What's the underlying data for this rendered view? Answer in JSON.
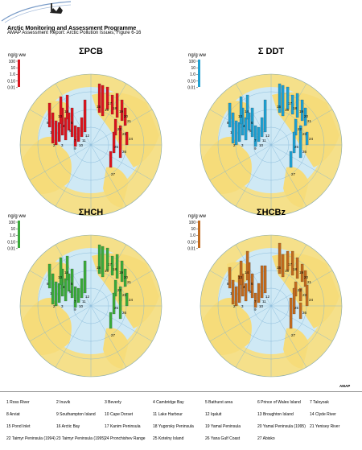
{
  "header": {
    "title": "Arctic Monitoring and Assessment Programme",
    "subtitle": "AMAP Assessment Report: Arctic Pollution Issues, Figure 6-16"
  },
  "colors": {
    "ocean": "#cfe9f5",
    "land": "#f6dc7a",
    "outer_land": "#f5e08a",
    "grid": "#7db3d6",
    "pcb": "#d8141e",
    "ddt": "#1e9fd0",
    "hch": "#3aa93a",
    "hcbz": "#c06a1e"
  },
  "scale": {
    "unit": "ng/g ww",
    "ticks": [
      "100",
      "10",
      "1.0",
      "0.10",
      "0.01"
    ]
  },
  "panels": [
    {
      "key": "pcb",
      "title": "ΣPCB"
    },
    {
      "key": "ddt",
      "title": "Σ DDT"
    },
    {
      "key": "hch",
      "title": "ΣHCH"
    },
    {
      "key": "hcbz",
      "title": "ΣHCBz"
    }
  ],
  "map_labels": [
    "1",
    "2",
    "3",
    "4",
    "5",
    "6",
    "7",
    "8",
    "9",
    "10",
    "11",
    "12",
    "13",
    "14",
    "15",
    "16",
    "17",
    "18",
    "19",
    "20",
    "21",
    "22",
    "23",
    "24",
    "25",
    "26",
    "27"
  ],
  "amap_mark": "AMAP",
  "legend": [
    "1  Ross River",
    "2  Inuvik",
    "3  Beverly",
    "4  Cambridge Bay",
    "5  Bathurst area",
    "6  Prince of Wales Island",
    "7  Taloyoak",
    "8  Arviat",
    "9  Southampton Island",
    "10  Cape Dorset",
    "11  Lake Harbour",
    "12  Iqaluit",
    "13  Broughton Island",
    "14  Clyde River",
    "15  Pond Inlet",
    "16  Arctic Bay",
    "17  Kanim Peninsula",
    "18  Yugorsky Peninsula",
    "19  Yamal Peninsula",
    "20  Yamal Peninsula (1995)",
    "21  Yenisey River",
    "22  Taimyr Peninsula (1994)",
    "23  Taimyr Peninsula (1995)",
    "24  Pronchishev Range",
    "25  Kotelny Island",
    "26  Yana Gulf Coast",
    "27  Abisko"
  ]
}
